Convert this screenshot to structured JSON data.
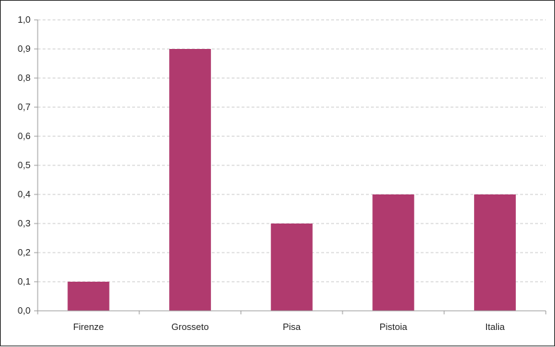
{
  "chart_data": {
    "type": "bar",
    "categories": [
      "Firenze",
      "Grosseto",
      "Pisa",
      "Pistoia",
      "Italia"
    ],
    "values": [
      0.1,
      0.9,
      0.3,
      0.4,
      0.4
    ],
    "title": "",
    "xlabel": "",
    "ylabel": "",
    "ylim": [
      0,
      1.0
    ],
    "yticks": [
      "0,0",
      "0,1",
      "0,2",
      "0,3",
      "0,4",
      "0,5",
      "0,6",
      "0,7",
      "0,8",
      "0,9",
      "1,0"
    ],
    "grid": "horizontal dashed",
    "legend": "none",
    "bar_color": "#b03a6e"
  }
}
